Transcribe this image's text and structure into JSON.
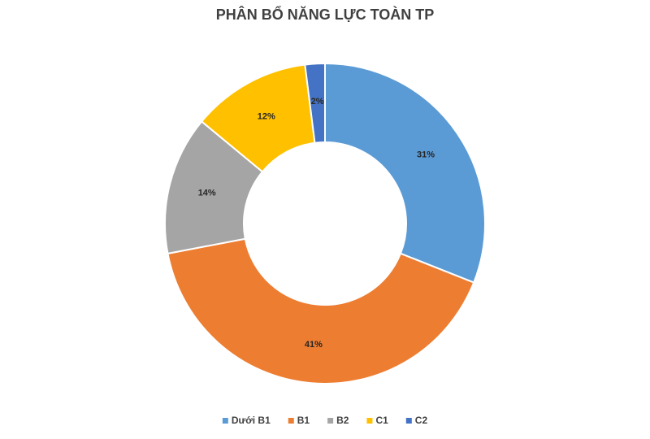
{
  "chart_data": {
    "type": "donut",
    "title": "PHÂN BỔ NĂNG LỰC TOÀN TP",
    "categories": [
      "Dưới B1",
      "B1",
      "B2",
      "C1",
      "C2"
    ],
    "values": [
      31,
      41,
      14,
      12,
      2
    ],
    "value_labels": [
      "31%",
      "41%",
      "14%",
      "12%",
      "2%"
    ],
    "colors": [
      "#5b9bd5",
      "#ed7d31",
      "#a5a5a5",
      "#ffc000",
      "#4472c4"
    ],
    "legend": "bottom"
  }
}
